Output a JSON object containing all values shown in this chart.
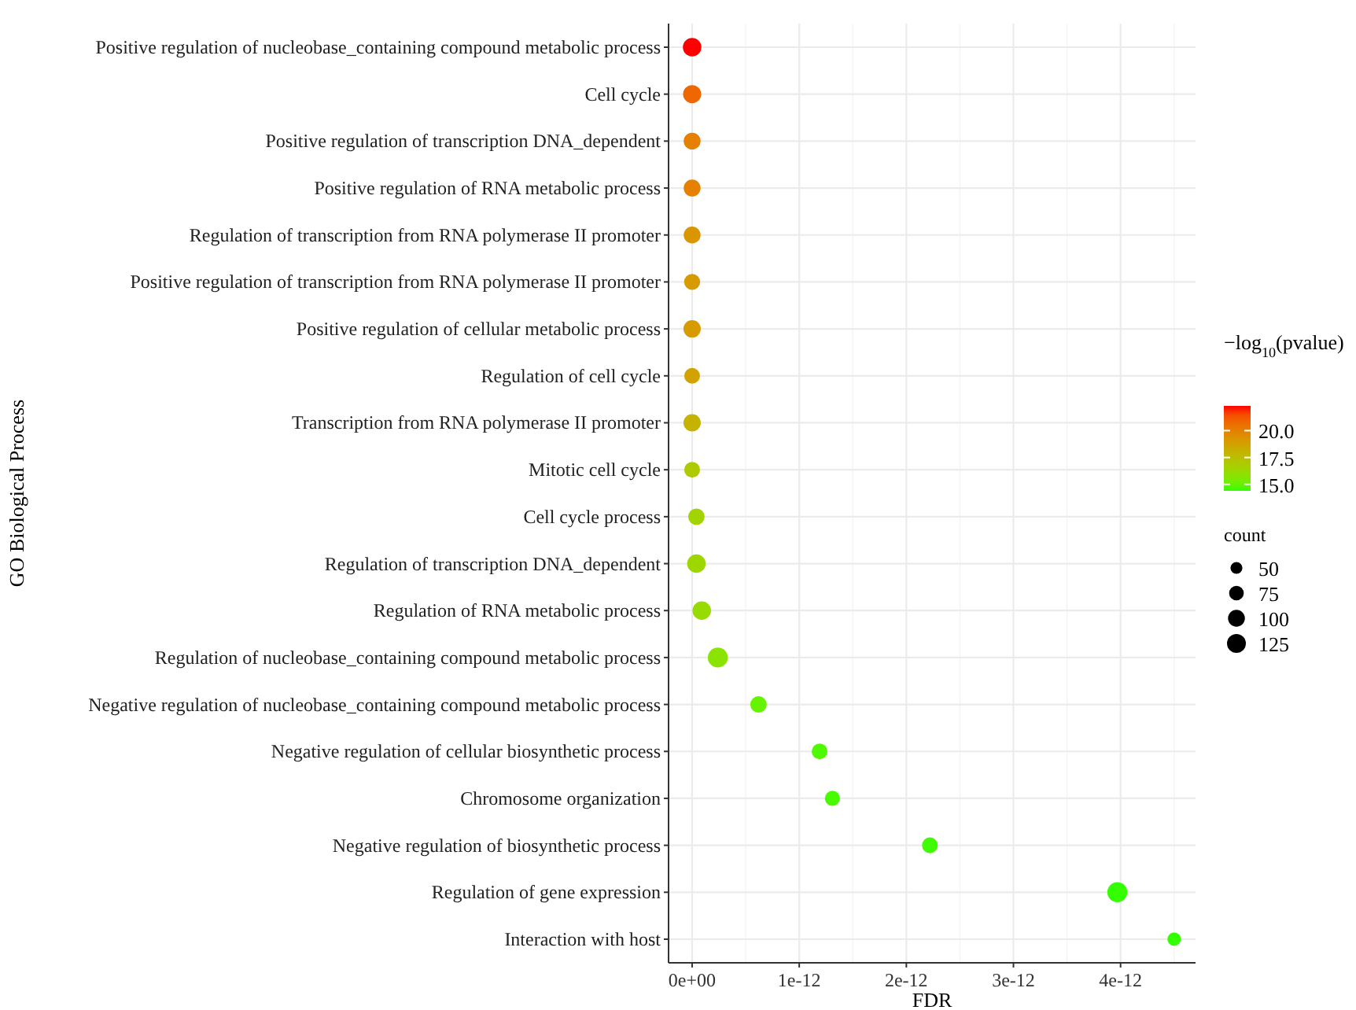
{
  "chart_data": {
    "type": "scatter",
    "orientation": "horizontal",
    "xlabel": "FDR",
    "ylabel": "GO Biological Process",
    "clabel": "−log$_{10}$(pvalue)",
    "legend_title": "count",
    "categories": [
      "Positive regulation of nucleobase_containing compound metabolic process",
      "Cell cycle",
      "Positive regulation of transcription DNA_dependent",
      "Positive regulation of RNA metabolic process",
      "Regulation of transcription from RNA polymerase II promoter",
      "Positive regulation of transcription from RNA polymerase II promoter",
      "Positive regulation of cellular metabolic process",
      "Regulation of cell cycle",
      "Transcription from RNA polymerase II promoter",
      "Mitotic cell cycle",
      "Cell cycle process",
      "Regulation of transcription DNA_dependent",
      "Regulation of RNA metabolic process",
      "Regulation of nucleobase_containing compound metabolic process",
      "Negative regulation of nucleobase_containing compound metabolic process",
      "Negative regulation of cellular biosynthetic process",
      "Chromosome organization",
      "Negative regulation of biosynthetic process",
      "Regulation of gene expression",
      "Interaction with host"
    ],
    "values": [
      0,
      0,
      0,
      0,
      0,
      0,
      0,
      0,
      0,
      0,
      4e-14,
      4e-14,
      9e-14,
      2.4e-13,
      6.2e-13,
      1.19e-12,
      1.31e-12,
      2.22e-12,
      3.97e-12,
      4.5e-12
    ],
    "cvalues": [
      22.3,
      20.8,
      20.0,
      20.0,
      19.2,
      19.0,
      19.0,
      18.7,
      18.0,
      17.0,
      16.5,
      16.4,
      16.2,
      15.8,
      15.0,
      14.7,
      14.6,
      14.5,
      14.4,
      14.4
    ],
    "sizes": [
      120,
      115,
      100,
      100,
      100,
      90,
      105,
      87,
      105,
      87,
      95,
      120,
      120,
      140,
      95,
      87,
      80,
      87,
      140,
      63
    ],
    "size_legend": [
      {
        "value": 50,
        "label": "50"
      },
      {
        "value": 75,
        "label": "75"
      },
      {
        "value": 100,
        "label": "100"
      },
      {
        "value": 125,
        "label": "125"
      }
    ],
    "clim": [
      14.4,
      22.3
    ],
    "cticks": [
      {
        "value": 15,
        "label": "15.0"
      },
      {
        "value": 17.5,
        "label": "17.5"
      },
      {
        "value": 20,
        "label": "20.0"
      }
    ],
    "xlim": [
      -2.2e-13,
      4.7e-12
    ],
    "xticks": [
      {
        "value": 0,
        "label": "0e+00"
      },
      {
        "value": 1e-12,
        "label": "1e-12"
      },
      {
        "value": 2e-12,
        "label": "2e-12"
      },
      {
        "value": 3e-12,
        "label": "3e-12"
      },
      {
        "value": 4e-12,
        "label": "4e-12"
      }
    ],
    "grid": true
  }
}
